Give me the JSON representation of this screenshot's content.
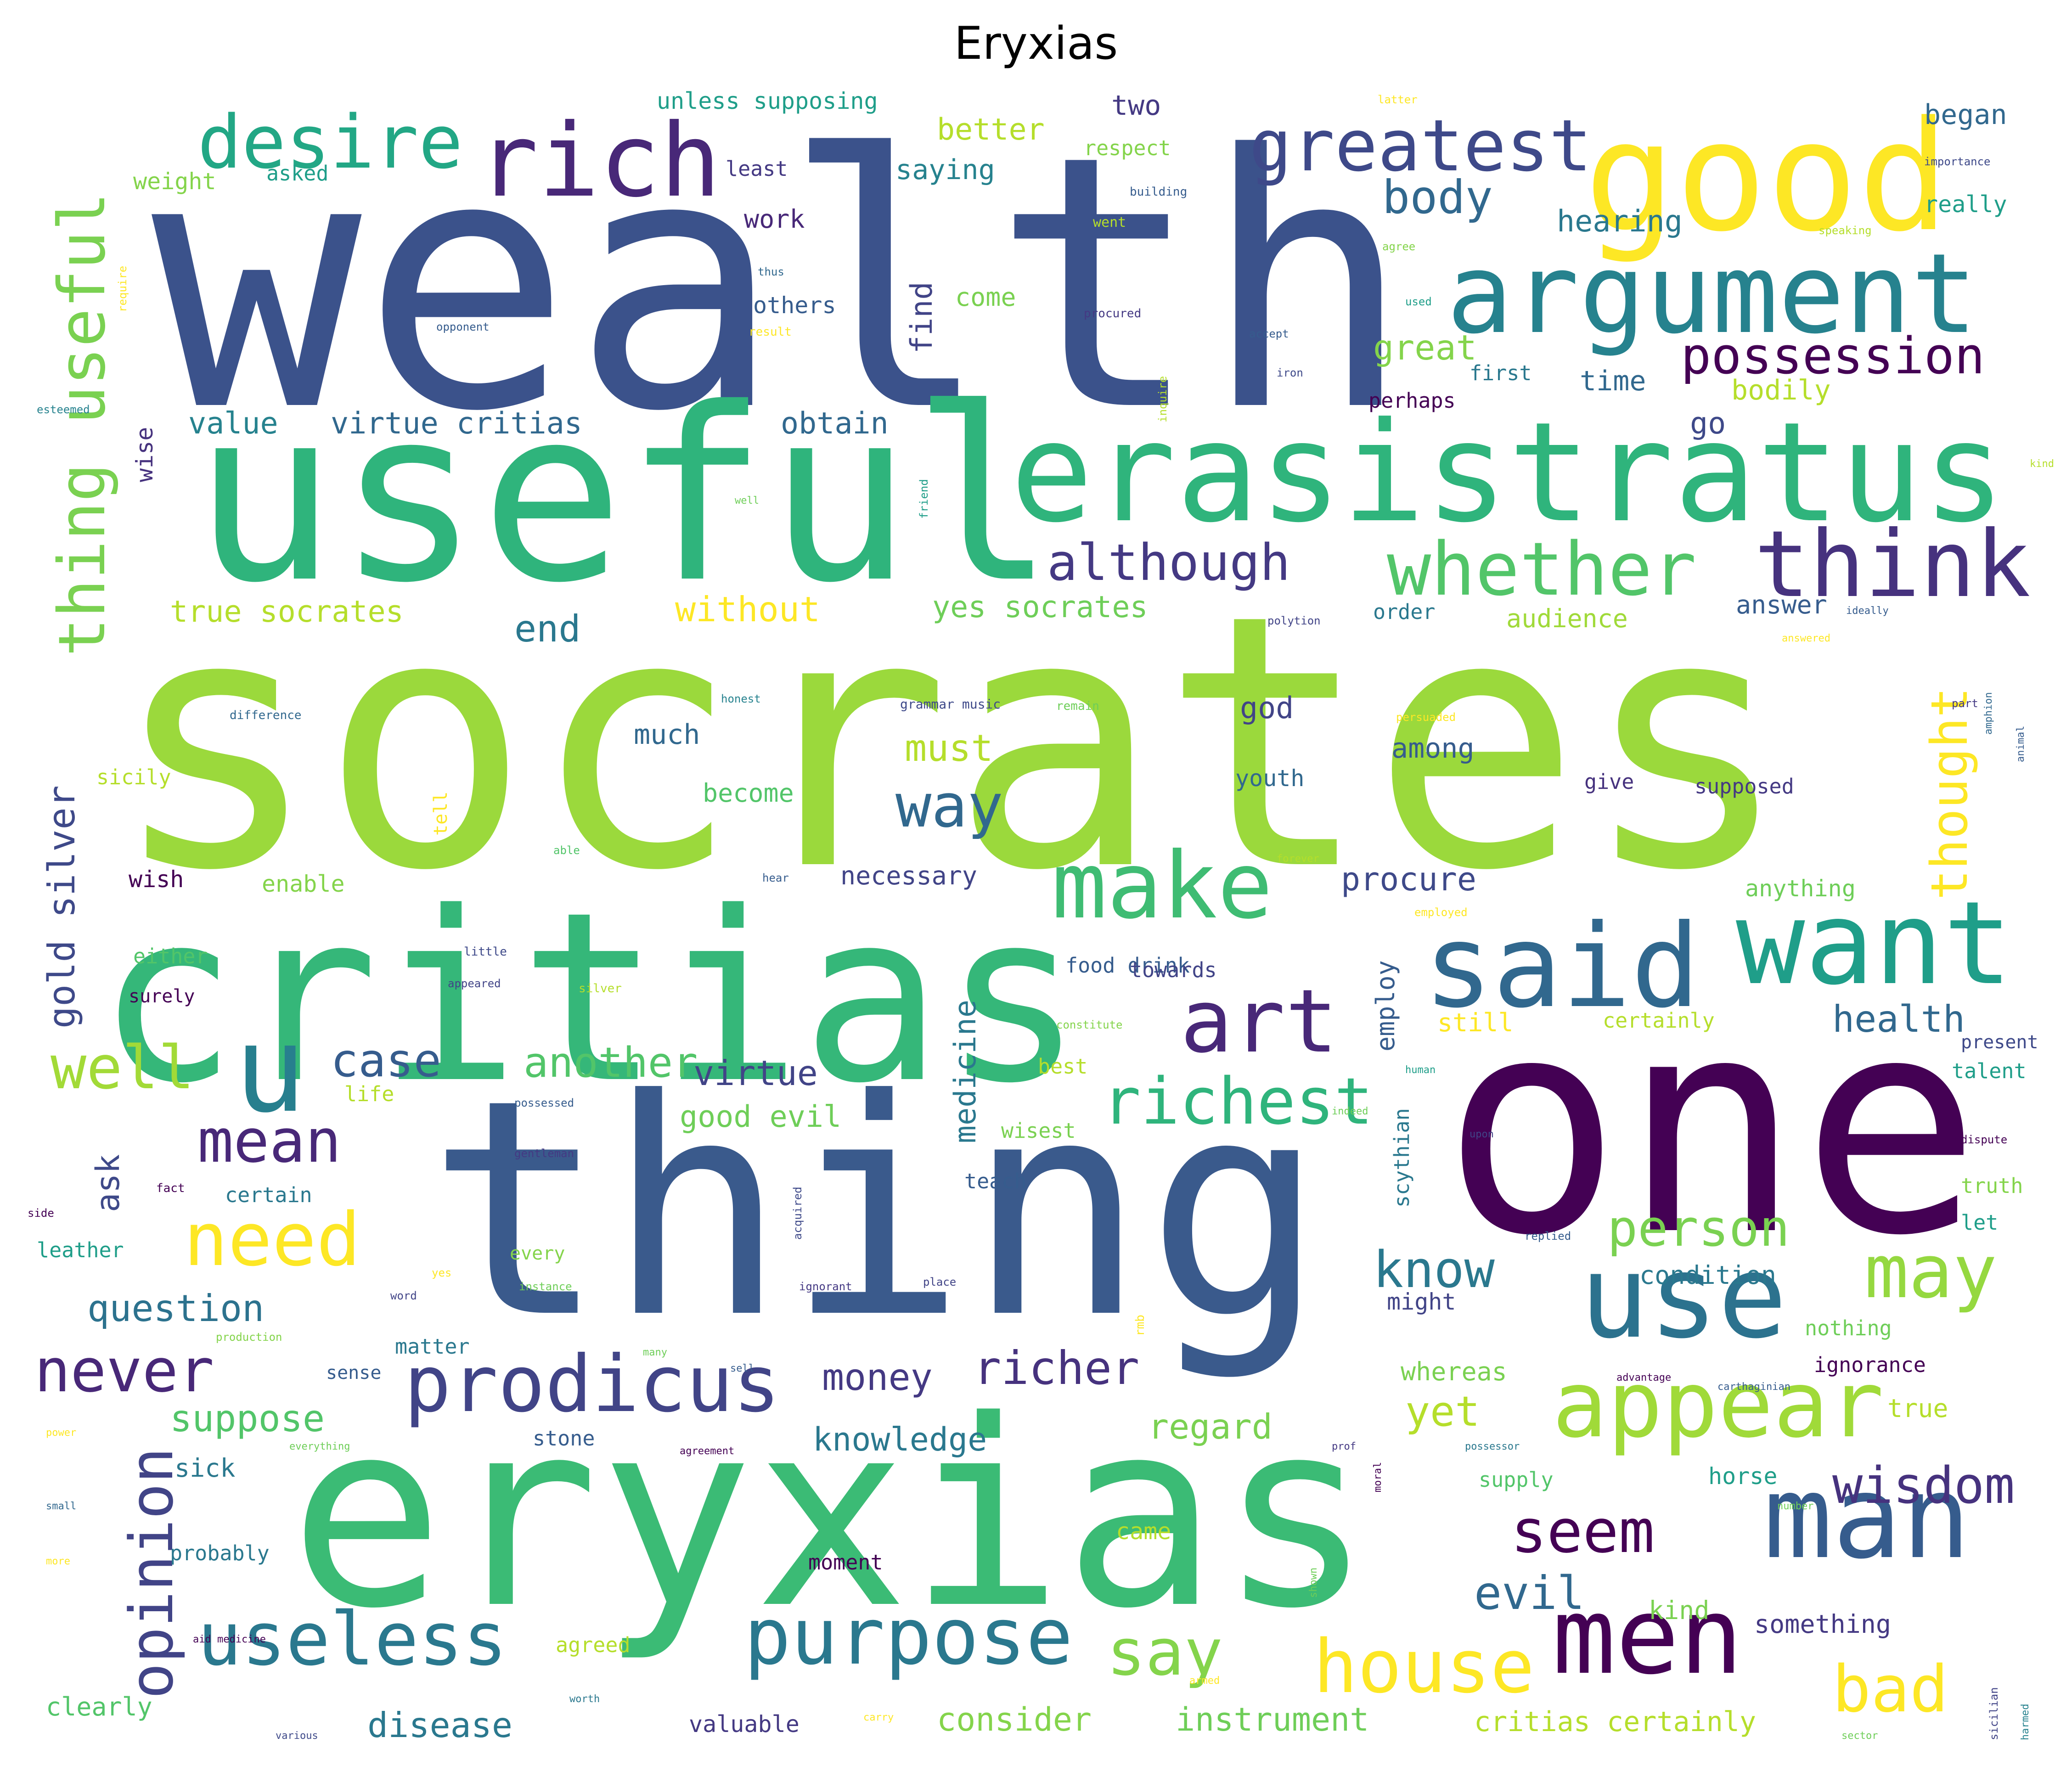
{
  "title": "Eryxias",
  "colors": {
    "v0": "#440154",
    "v1": "#482878",
    "v2": "#3e4989",
    "v3": "#31688e",
    "v4": "#26828e",
    "v5": "#1f9e89",
    "v6": "#35b779",
    "v7": "#6ece58",
    "v8": "#b5de2b",
    "v9": "#fde725"
  },
  "words": [
    {
      "text": "wealth",
      "color": "#3b528b"
    },
    {
      "text": "socrates",
      "color": "#9bd93c"
    },
    {
      "text": "useful",
      "color": "#2fb47c"
    },
    {
      "text": "thing",
      "color": "#3a5a8c"
    },
    {
      "text": "eryxias",
      "color": "#3bbb75"
    },
    {
      "text": "critias",
      "color": "#35b779"
    },
    {
      "text": "one",
      "color": "#440154"
    },
    {
      "text": "good",
      "color": "#fde725"
    },
    {
      "text": "erasistratus",
      "color": "#2fb47c"
    },
    {
      "text": "argument",
      "color": "#26828e"
    },
    {
      "text": "rich",
      "color": "#482878"
    },
    {
      "text": "desire",
      "color": "#22a785"
    },
    {
      "text": "greatest",
      "color": "#3e4989"
    },
    {
      "text": "said",
      "color": "#31688e"
    },
    {
      "text": "want",
      "color": "#1f9e89"
    },
    {
      "text": "think",
      "color": "#46327e"
    },
    {
      "text": "whether",
      "color": "#52c569"
    },
    {
      "text": "make",
      "color": "#3fbc73"
    },
    {
      "text": "art",
      "color": "#482878"
    },
    {
      "text": "u",
      "color": "#277f8e"
    },
    {
      "text": "use",
      "color": "#2c728e"
    },
    {
      "text": "man",
      "color": "#365c8d"
    },
    {
      "text": "men",
      "color": "#440154"
    },
    {
      "text": "appear",
      "color": "#a0da39"
    },
    {
      "text": "prodicus",
      "color": "#414487"
    },
    {
      "text": "purpose",
      "color": "#2a788e"
    },
    {
      "text": "useless",
      "color": "#2a788e"
    },
    {
      "text": "need",
      "color": "#fde725"
    },
    {
      "text": "mean",
      "color": "#482878"
    },
    {
      "text": "never",
      "color": "#482878"
    },
    {
      "text": "opinion",
      "color": "#414487"
    },
    {
      "text": "richest",
      "color": "#2fb47c"
    },
    {
      "text": "house",
      "color": "#fde725"
    },
    {
      "text": "say",
      "color": "#84d44b"
    },
    {
      "text": "may",
      "color": "#95d840"
    },
    {
      "text": "possession",
      "color": "#440154"
    },
    {
      "text": "way",
      "color": "#31688e"
    },
    {
      "text": "although",
      "color": "#443983"
    },
    {
      "text": "body",
      "color": "#31688e"
    },
    {
      "text": "wisdom",
      "color": "#46327e"
    },
    {
      "text": "seem",
      "color": "#440154"
    },
    {
      "text": "bad",
      "color": "#fde725"
    },
    {
      "text": "thought",
      "color": "#fde725"
    },
    {
      "text": "thing useful",
      "color": "#7ad151"
    },
    {
      "text": "gold silver",
      "color": "#3e4989"
    },
    {
      "text": "well",
      "color": "#a2da37"
    },
    {
      "text": "richer",
      "color": "#46327e"
    },
    {
      "text": "person",
      "color": "#7ad151"
    },
    {
      "text": "know",
      "color": "#2a788e"
    },
    {
      "text": "evil",
      "color": "#31688e"
    },
    {
      "text": "question",
      "color": "#2c728e"
    },
    {
      "text": "case",
      "color": "#365c8d"
    },
    {
      "text": "another",
      "color": "#52c569"
    },
    {
      "text": "health",
      "color": "#31688e"
    },
    {
      "text": "procure",
      "color": "#3e4989"
    },
    {
      "text": "must",
      "color": "#b5de2b"
    },
    {
      "text": "virtue",
      "color": "#414487"
    },
    {
      "text": "money",
      "color": "#443983"
    },
    {
      "text": "knowledge",
      "color": "#2a788e"
    },
    {
      "text": "regard",
      "color": "#7ad151"
    },
    {
      "text": "yet",
      "color": "#b5de2b"
    },
    {
      "text": "suppose",
      "color": "#52c569"
    },
    {
      "text": "end",
      "color": "#2a788e"
    },
    {
      "text": "without",
      "color": "#fde725"
    },
    {
      "text": "value",
      "color": "#26828e"
    },
    {
      "text": "virtue critias",
      "color": "#31688e"
    },
    {
      "text": "obtain",
      "color": "#31688e"
    },
    {
      "text": "true socrates",
      "color": "#b5de2b"
    },
    {
      "text": "yes socrates",
      "color": "#6ece58"
    },
    {
      "text": "great",
      "color": "#84d44b"
    },
    {
      "text": "go",
      "color": "#3e4989"
    },
    {
      "text": "time",
      "color": "#31688e"
    },
    {
      "text": "better",
      "color": "#b5de2b"
    },
    {
      "text": "two",
      "color": "#443983"
    },
    {
      "text": "saying",
      "color": "#26828e"
    },
    {
      "text": "weight",
      "color": "#84d44b"
    },
    {
      "text": "asked",
      "color": "#1f9e89"
    },
    {
      "text": "least",
      "color": "#443983"
    },
    {
      "text": "respect",
      "color": "#84d44b"
    },
    {
      "text": "began",
      "color": "#31688e"
    },
    {
      "text": "really",
      "color": "#1f9e89"
    },
    {
      "text": "hearing",
      "color": "#2a788e"
    },
    {
      "text": "work",
      "color": "#482878"
    },
    {
      "text": "others",
      "color": "#365c8d"
    },
    {
      "text": "come",
      "color": "#7ad151"
    },
    {
      "text": "find",
      "color": "#414487"
    },
    {
      "text": "first",
      "color": "#2a788e"
    },
    {
      "text": "bodily",
      "color": "#b5de2b"
    },
    {
      "text": "perhaps",
      "color": "#440154"
    },
    {
      "text": "unless supposing",
      "color": "#1f9e89"
    },
    {
      "text": "wise",
      "color": "#46327e"
    },
    {
      "text": "audience",
      "color": "#a0da39"
    },
    {
      "text": "order",
      "color": "#2a788e"
    },
    {
      "text": "answer",
      "color": "#365c8d"
    },
    {
      "text": "god",
      "color": "#414487"
    },
    {
      "text": "much",
      "color": "#31688e"
    },
    {
      "text": "become",
      "color": "#52c569"
    },
    {
      "text": "among",
      "color": "#365c8d"
    },
    {
      "text": "youth",
      "color": "#31688e"
    },
    {
      "text": "give",
      "color": "#46327e"
    },
    {
      "text": "supposed",
      "color": "#443983"
    },
    {
      "text": "necessary",
      "color": "#414487"
    },
    {
      "text": "anything",
      "color": "#6ece58"
    },
    {
      "text": "wish",
      "color": "#440154"
    },
    {
      "text": "enable",
      "color": "#84d44b"
    },
    {
      "text": "sicily",
      "color": "#b5de2b"
    },
    {
      "text": "ask",
      "color": "#3e4989"
    },
    {
      "text": "either",
      "color": "#52c569"
    },
    {
      "text": "surely",
      "color": "#440154"
    },
    {
      "text": "food drink",
      "color": "#365c8d"
    },
    {
      "text": "towards",
      "color": "#414487"
    },
    {
      "text": "still",
      "color": "#fde725"
    },
    {
      "text": "certainly",
      "color": "#b5de2b"
    },
    {
      "text": "present",
      "color": "#3e4989"
    },
    {
      "text": "employ",
      "color": "#365c8d"
    },
    {
      "text": "talent",
      "color": "#1f9e89"
    },
    {
      "text": "best",
      "color": "#b5de2b"
    },
    {
      "text": "wisest",
      "color": "#7ad151"
    },
    {
      "text": "good evil",
      "color": "#6ece58"
    },
    {
      "text": "medicine",
      "color": "#2a788e"
    },
    {
      "text": "life",
      "color": "#b5de2b"
    },
    {
      "text": "certain",
      "color": "#2a788e"
    },
    {
      "text": "teach",
      "color": "#365c8d"
    },
    {
      "text": "truth",
      "color": "#84d44b"
    },
    {
      "text": "let",
      "color": "#1f9e89"
    },
    {
      "text": "leather",
      "color": "#1f9e89"
    },
    {
      "text": "scythian",
      "color": "#2a788e"
    },
    {
      "text": "every",
      "color": "#84d44b"
    },
    {
      "text": "condition",
      "color": "#2a788e"
    },
    {
      "text": "might",
      "color": "#414487"
    },
    {
      "text": "whereas",
      "color": "#7ad151"
    },
    {
      "text": "nothing",
      "color": "#6ece58"
    },
    {
      "text": "matter",
      "color": "#2a788e"
    },
    {
      "text": "sense",
      "color": "#365c8d"
    },
    {
      "text": "ignorance",
      "color": "#440154"
    },
    {
      "text": "true",
      "color": "#b5de2b"
    },
    {
      "text": "stone",
      "color": "#365c8d"
    },
    {
      "text": "sick",
      "color": "#2a788e"
    },
    {
      "text": "supply",
      "color": "#52c569"
    },
    {
      "text": "horse",
      "color": "#1f9e89"
    },
    {
      "text": "probably",
      "color": "#2a788e"
    },
    {
      "text": "moment",
      "color": "#440154"
    },
    {
      "text": "came",
      "color": "#b5de2b"
    },
    {
      "text": "kind",
      "color": "#7ad151"
    },
    {
      "text": "something",
      "color": "#443983"
    },
    {
      "text": "agreed",
      "color": "#b5de2b"
    },
    {
      "text": "clearly",
      "color": "#52c569"
    },
    {
      "text": "disease",
      "color": "#2a788e"
    },
    {
      "text": "valuable",
      "color": "#443983"
    },
    {
      "text": "consider",
      "color": "#84d44b"
    },
    {
      "text": "instrument",
      "color": "#6ece58"
    },
    {
      "text": "critias certainly",
      "color": "#b5de2b"
    },
    {
      "text": "latter",
      "color": "#fde725"
    },
    {
      "text": "importance",
      "color": "#3e4989"
    },
    {
      "text": "building",
      "color": "#365c8d"
    },
    {
      "text": "speaking",
      "color": "#b5de2b"
    },
    {
      "text": "agree",
      "color": "#84d44b"
    },
    {
      "text": "went",
      "color": "#b5de2b"
    },
    {
      "text": "thus",
      "color": "#31688e"
    },
    {
      "text": "require",
      "color": "#fde725"
    },
    {
      "text": "opponent",
      "color": "#365c8d"
    },
    {
      "text": "result",
      "color": "#fde725"
    },
    {
      "text": "procured",
      "color": "#443983"
    },
    {
      "text": "used",
      "color": "#1f9e89"
    },
    {
      "text": "accept",
      "color": "#365c8d"
    },
    {
      "text": "iron",
      "color": "#3e4989"
    },
    {
      "text": "esteemed",
      "color": "#26828e"
    },
    {
      "text": "inquire",
      "color": "#b5de2b"
    },
    {
      "text": "tell",
      "color": "#fde725"
    },
    {
      "text": "friend",
      "color": "#1f9e89"
    },
    {
      "text": "polytion",
      "color": "#414487"
    },
    {
      "text": "ideally",
      "color": "#365c8d"
    },
    {
      "text": "answered",
      "color": "#fde725"
    },
    {
      "text": "honest",
      "color": "#26828e"
    },
    {
      "text": "persuaded",
      "color": "#fde725"
    },
    {
      "text": "part",
      "color": "#443983"
    },
    {
      "text": "difference",
      "color": "#31688e"
    },
    {
      "text": "grammar music",
      "color": "#3e4989"
    },
    {
      "text": "remain",
      "color": "#6ece58"
    },
    {
      "text": "able",
      "color": "#52c569"
    },
    {
      "text": "hear",
      "color": "#365c8d"
    },
    {
      "text": "forever",
      "color": "#b5de2b"
    },
    {
      "text": "employed",
      "color": "#fde725"
    },
    {
      "text": "little",
      "color": "#3e4989"
    },
    {
      "text": "appeared",
      "color": "#414487"
    },
    {
      "text": "silver",
      "color": "#b5de2b"
    },
    {
      "text": "constitute",
      "color": "#84d44b"
    },
    {
      "text": "human",
      "color": "#1f9e89"
    },
    {
      "text": "possessed",
      "color": "#365c8d"
    },
    {
      "text": "indeed",
      "color": "#6ece58"
    },
    {
      "text": "upon",
      "color": "#414487"
    },
    {
      "text": "dispute",
      "color": "#440154"
    },
    {
      "text": "gentleman",
      "color": "#443983"
    },
    {
      "text": "fact",
      "color": "#440154"
    },
    {
      "text": "acquired",
      "color": "#3e4989"
    },
    {
      "text": "side",
      "color": "#440154"
    },
    {
      "text": "yes",
      "color": "#fde725"
    },
    {
      "text": "ignorant",
      "color": "#443983"
    },
    {
      "text": "place",
      "color": "#414487"
    },
    {
      "text": "replied",
      "color": "#365c8d"
    },
    {
      "text": "word",
      "color": "#414487"
    },
    {
      "text": "instance",
      "color": "#6ece58"
    },
    {
      "text": "production",
      "color": "#84d44b"
    },
    {
      "text": "many",
      "color": "#6ece58"
    },
    {
      "text": "rmb",
      "color": "#fde725"
    },
    {
      "text": "advantage",
      "color": "#440154"
    },
    {
      "text": "carthaginian",
      "color": "#365c8d"
    },
    {
      "text": "power",
      "color": "#fde725"
    },
    {
      "text": "everything",
      "color": "#6ece58"
    },
    {
      "text": "agreement",
      "color": "#440154"
    },
    {
      "text": "prof",
      "color": "#443983"
    },
    {
      "text": "possessor",
      "color": "#2a788e"
    },
    {
      "text": "small",
      "color": "#31688e"
    },
    {
      "text": "number",
      "color": "#6ece58"
    },
    {
      "text": "more",
      "color": "#fde725"
    },
    {
      "text": "sell",
      "color": "#365c8d"
    },
    {
      "text": "shown",
      "color": "#6ece58"
    },
    {
      "text": "aid medicine",
      "color": "#440154"
    },
    {
      "text": "worth",
      "color": "#2a788e"
    },
    {
      "text": "sicilian",
      "color": "#414487"
    },
    {
      "text": "harmed",
      "color": "#26828e"
    },
    {
      "text": "carry",
      "color": "#fde725"
    },
    {
      "text": "various",
      "color": "#3e4989"
    },
    {
      "text": "sector",
      "color": "#6ece58"
    },
    {
      "text": "amphion",
      "color": "#31688e"
    },
    {
      "text": "animal",
      "color": "#365c8d"
    },
    {
      "text": "moral",
      "color": "#440154"
    },
    {
      "text": "kind",
      "color": "#b5de2b"
    },
    {
      "text": "well",
      "color": "#6ece58"
    },
    {
      "text": "armed",
      "color": "#fde725"
    }
  ]
}
